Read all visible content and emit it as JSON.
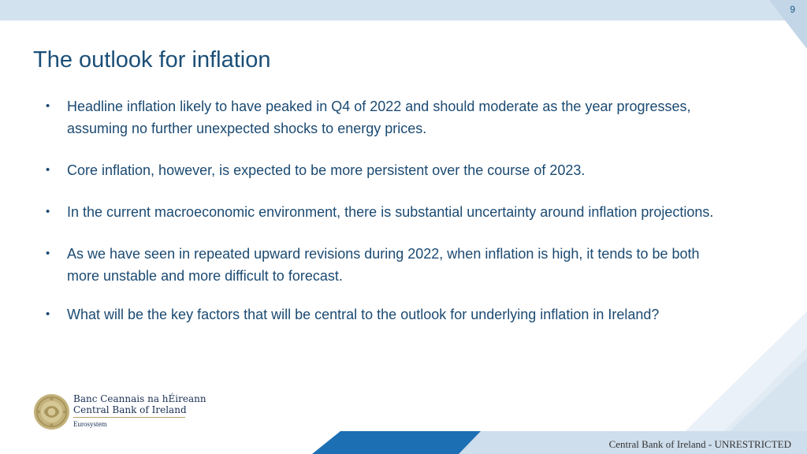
{
  "slide": {
    "page_number": "9",
    "title": "The outlook for inflation",
    "bullets": [
      "Headline inflation likely to have peaked in Q4 of 2022 and should moderate as the year progresses, assuming no further unexpected shocks to energy prices.",
      "Core inflation, however, is expected to be more persistent over the course of 2023.",
      "In the current macroeconomic environment, there is substantial uncertainty around inflation projections.",
      "As we have seen in repeated upward revisions during 2022, when inflation is high, it tends to be both more unstable and more difficult to forecast.",
      "What will be the key factors that will be central to the outlook for underlying inflation in Ireland?"
    ],
    "bullet_symbol": "•"
  },
  "logo": {
    "name_irish": "Banc Ceannais na hÉireann",
    "name_english": "Central Bank of Ireland",
    "tagline": "Eurosystem"
  },
  "footer": {
    "classification": "Central Bank of Ireland - UNRESTRICTED"
  },
  "colors": {
    "title": "#1b4f78",
    "body_text": "#1b4a72",
    "band_light": "#d3e2ef",
    "band_dark": "#1d6fb4",
    "seal_gold": "#b3a06a"
  }
}
